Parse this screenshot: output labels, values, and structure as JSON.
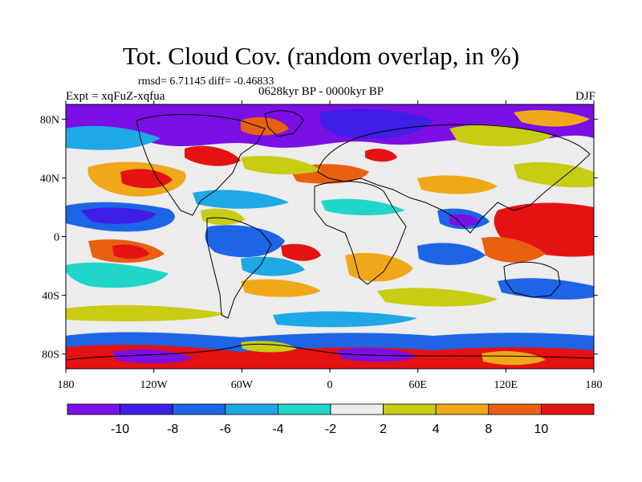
{
  "header": {
    "title": "Tot. Cloud Cov. (random overlap, in %)",
    "stats": "rmsd= 6.71145 diff= -0.46833",
    "expt": "Expt = xqFuZ-xqfua",
    "period": "0628kyr BP - 0000kyr BP",
    "season": "DJF"
  },
  "axes": {
    "x_ticks": [
      "180",
      "120W",
      "60W",
      "0",
      "60E",
      "120E",
      "180"
    ],
    "y_ticks": [
      "80N",
      "40N",
      "0",
      "40S",
      "80S"
    ],
    "lon_range": [
      -180,
      180
    ],
    "lat_range": [
      -90,
      90
    ]
  },
  "colorbar": {
    "labels": [
      "-10",
      "-8",
      "-6",
      "-4",
      "-2",
      "2",
      "4",
      "8",
      "10"
    ],
    "colors": [
      "#7a0fe6",
      "#3f1ee6",
      "#1e64e6",
      "#1ea8e6",
      "#20d6c8",
      "#ececec",
      "#c8cc12",
      "#f0a818",
      "#e86010",
      "#e41212"
    ]
  },
  "map": {
    "background_color": "#ececec",
    "projection": "cylindrical-equidistant"
  }
}
